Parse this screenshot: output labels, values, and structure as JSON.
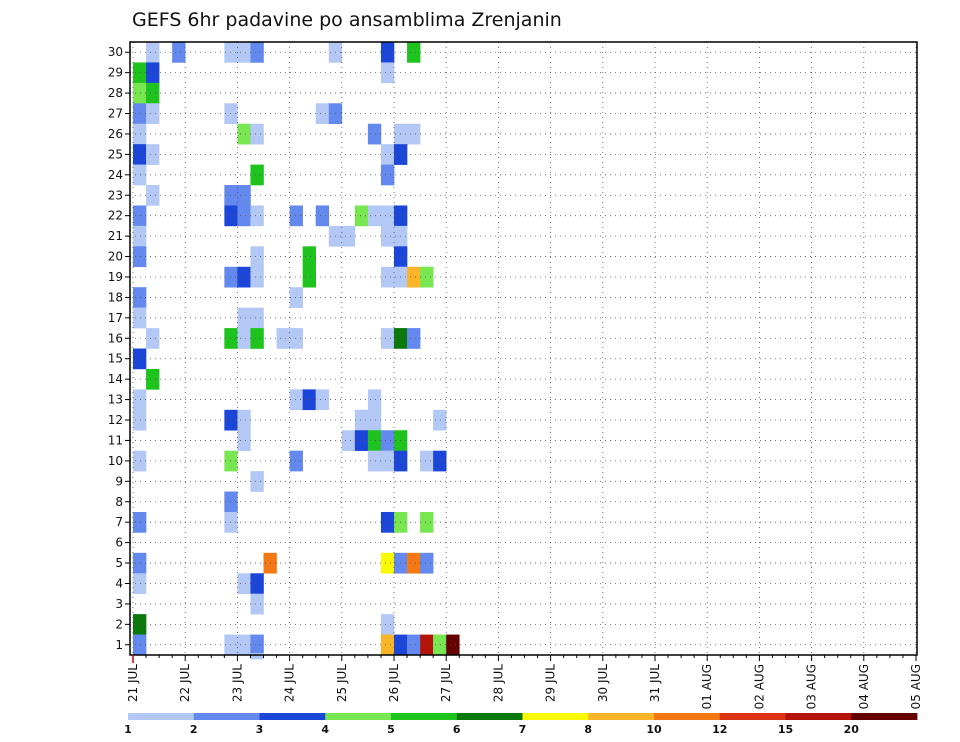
{
  "chart_data": {
    "type": "heatmap",
    "title": "GEFS 6hr padavine po ansamblima Zrenjanin",
    "xlabel": "",
    "ylabel": "",
    "x_tick_labels": [
      "21 JUL",
      "22 JUL",
      "23 JUL",
      "24 JUL",
      "25 JUL",
      "26 JUL",
      "27 JUL",
      "28 JUL",
      "29 JUL",
      "30 JUL",
      "31 JUL",
      "01 AUG",
      "02 AUG",
      "03 AUG",
      "04 AUG",
      "05 AUG"
    ],
    "y_tick_labels": [
      "1",
      "2",
      "3",
      "4",
      "5",
      "6",
      "7",
      "8",
      "9",
      "10",
      "11",
      "12",
      "13",
      "14",
      "15",
      "16",
      "17",
      "18",
      "19",
      "20",
      "21",
      "22",
      "23",
      "24",
      "25",
      "26",
      "27",
      "28",
      "29",
      "30"
    ],
    "time_step_hours": 6,
    "grid": true,
    "colorbar": {
      "placement": "bottom",
      "labels": [
        "1",
        "2",
        "3",
        "4",
        "5",
        "6",
        "7",
        "8",
        "10",
        "12",
        "15",
        "20"
      ],
      "colors": [
        "#b4c8f5",
        "#6489ee",
        "#1c46d8",
        "#78e650",
        "#1ec31e",
        "#0a780a",
        "#fafa00",
        "#fab428",
        "#f57814",
        "#dc3214",
        "#b41408",
        "#640000"
      ]
    },
    "cells": [
      [
        0.25,
        30,
        1
      ],
      [
        0.75,
        30,
        2
      ],
      [
        1.75,
        30,
        1
      ],
      [
        2.0,
        30,
        1
      ],
      [
        2.25,
        30,
        2
      ],
      [
        3.75,
        30,
        1
      ],
      [
        4.75,
        30,
        3
      ],
      [
        5.25,
        30,
        5
      ],
      [
        0.0,
        29,
        5
      ],
      [
        0.25,
        29,
        3
      ],
      [
        4.75,
        29,
        1
      ],
      [
        0.0,
        28,
        4
      ],
      [
        0.25,
        28,
        5
      ],
      [
        0.0,
        27,
        2
      ],
      [
        0.25,
        27,
        1
      ],
      [
        1.75,
        27,
        1
      ],
      [
        3.5,
        27,
        1
      ],
      [
        3.75,
        27,
        2
      ],
      [
        0.0,
        26,
        1
      ],
      [
        2.0,
        26,
        4
      ],
      [
        2.25,
        26,
        1
      ],
      [
        4.5,
        26,
        2
      ],
      [
        5.0,
        26,
        1
      ],
      [
        5.25,
        26,
        1
      ],
      [
        0.0,
        25,
        3
      ],
      [
        0.25,
        25,
        1
      ],
      [
        4.75,
        25,
        1
      ],
      [
        5.0,
        25,
        3
      ],
      [
        0.0,
        24,
        1
      ],
      [
        2.25,
        24,
        5
      ],
      [
        4.75,
        24,
        2
      ],
      [
        0.25,
        23,
        1
      ],
      [
        1.75,
        23,
        2
      ],
      [
        2.0,
        23,
        2
      ],
      [
        0.0,
        22,
        2
      ],
      [
        1.75,
        22,
        3
      ],
      [
        2.0,
        22,
        2
      ],
      [
        2.25,
        22,
        1
      ],
      [
        3.0,
        22,
        2
      ],
      [
        3.5,
        22,
        2
      ],
      [
        4.25,
        22,
        4
      ],
      [
        4.5,
        22,
        1
      ],
      [
        4.75,
        22,
        1
      ],
      [
        5.0,
        22,
        3
      ],
      [
        0.0,
        21,
        1
      ],
      [
        3.75,
        21,
        1
      ],
      [
        4.0,
        21,
        1
      ],
      [
        4.75,
        21,
        1
      ],
      [
        5.0,
        21,
        1
      ],
      [
        0.0,
        20,
        2
      ],
      [
        2.25,
        20,
        1
      ],
      [
        3.25,
        20,
        5
      ],
      [
        5.0,
        20,
        3
      ],
      [
        1.75,
        19,
        2
      ],
      [
        2.0,
        19,
        3
      ],
      [
        2.25,
        19,
        1
      ],
      [
        3.25,
        19,
        5
      ],
      [
        4.75,
        19,
        1
      ],
      [
        5.0,
        19,
        2
      ],
      [
        5.0,
        19,
        1
      ],
      [
        5.25,
        19,
        8
      ],
      [
        5.5,
        19,
        4
      ],
      [
        0.0,
        18,
        2
      ],
      [
        3.0,
        18,
        1
      ],
      [
        0.0,
        17,
        1
      ],
      [
        2.0,
        17,
        1
      ],
      [
        2.25,
        17,
        1
      ],
      [
        0.25,
        16,
        1
      ],
      [
        1.75,
        16,
        5
      ],
      [
        2.0,
        16,
        1
      ],
      [
        2.25,
        16,
        5
      ],
      [
        2.75,
        16,
        1
      ],
      [
        3.0,
        16,
        1
      ],
      [
        4.75,
        16,
        1
      ],
      [
        5.0,
        16,
        6
      ],
      [
        5.25,
        16,
        2
      ],
      [
        0.0,
        15,
        3
      ],
      [
        0.25,
        14,
        5
      ],
      [
        0.0,
        13,
        1
      ],
      [
        3.0,
        13,
        1
      ],
      [
        3.25,
        13,
        3
      ],
      [
        3.5,
        13,
        1
      ],
      [
        4.5,
        13,
        1
      ],
      [
        0.0,
        12,
        1
      ],
      [
        1.75,
        12,
        3
      ],
      [
        2.0,
        12,
        1
      ],
      [
        4.25,
        12,
        1
      ],
      [
        4.5,
        12,
        1
      ],
      [
        5.75,
        12,
        1
      ],
      [
        2.0,
        11,
        1
      ],
      [
        4.0,
        11,
        1
      ],
      [
        4.25,
        11,
        3
      ],
      [
        4.5,
        11,
        5
      ],
      [
        4.75,
        11,
        2
      ],
      [
        5.0,
        11,
        5
      ],
      [
        0.0,
        10,
        1
      ],
      [
        1.75,
        10,
        4
      ],
      [
        3.0,
        10,
        2
      ],
      [
        4.5,
        10,
        1
      ],
      [
        4.75,
        10,
        1
      ],
      [
        5.0,
        10,
        3
      ],
      [
        5.5,
        10,
        1
      ],
      [
        5.75,
        10,
        3
      ],
      [
        2.25,
        9,
        1
      ],
      [
        1.75,
        8,
        2
      ],
      [
        0.0,
        7,
        2
      ],
      [
        1.75,
        7,
        1
      ],
      [
        4.75,
        7,
        3
      ],
      [
        5.0,
        7,
        4
      ],
      [
        5.5,
        7,
        4
      ],
      [
        0.0,
        5,
        2
      ],
      [
        2.5,
        5,
        9
      ],
      [
        4.75,
        5,
        7
      ],
      [
        5.0,
        5,
        2
      ],
      [
        5.25,
        5,
        9
      ],
      [
        5.5,
        5,
        2
      ],
      [
        0.0,
        4,
        1
      ],
      [
        2.0,
        4,
        1
      ],
      [
        2.25,
        4,
        3
      ],
      [
        2.25,
        3,
        1
      ],
      [
        0.0,
        2,
        6
      ],
      [
        4.75,
        2,
        1
      ],
      [
        0.0,
        1,
        2
      ],
      [
        1.75,
        1,
        1
      ],
      [
        2.0,
        1,
        1
      ],
      [
        2.25,
        1,
        2
      ],
      [
        2.25,
        0,
        1
      ],
      [
        4.75,
        1,
        8
      ],
      [
        5.0,
        1,
        3
      ],
      [
        5.25,
        1,
        2
      ],
      [
        5.5,
        1,
        11
      ],
      [
        5.75,
        1,
        8
      ],
      [
        5.75,
        1,
        4
      ],
      [
        6.0,
        1,
        12
      ]
    ]
  }
}
